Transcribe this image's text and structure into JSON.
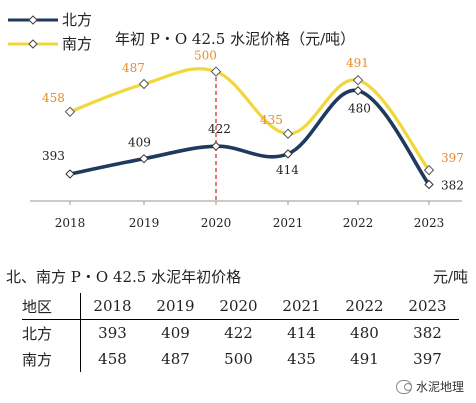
{
  "chart_data": {
    "type": "line",
    "title": "年初 P・O 42.5 水泥价格（元/吨）",
    "categories": [
      "2018",
      "2019",
      "2020",
      "2021",
      "2022",
      "2023"
    ],
    "series": [
      {
        "name": "北方",
        "values": [
          393,
          409,
          422,
          414,
          480,
          382
        ],
        "color": "#1f3a5f",
        "label_color": "#222222"
      },
      {
        "name": "南方",
        "values": [
          458,
          487,
          500,
          435,
          491,
          397
        ],
        "color": "#f2d73a",
        "label_color": "#e98a2a"
      }
    ],
    "ylim": [
      370,
      510
    ],
    "reference_line": {
      "at": "2020",
      "color": "#d62020",
      "style": "dashed"
    },
    "legend": "top-left",
    "grid": false
  },
  "table": {
    "title": "北、南方 P・O 42.5 水泥年初价格",
    "unit": "元/吨",
    "header_label": "地区",
    "years": [
      "2018",
      "2019",
      "2020",
      "2021",
      "2022",
      "2023"
    ],
    "rows": [
      {
        "region": "北方",
        "values": [
          "393",
          "409",
          "422",
          "414",
          "480",
          "382"
        ]
      },
      {
        "region": "南方",
        "values": [
          "458",
          "487",
          "500",
          "435",
          "491",
          "397"
        ]
      }
    ]
  },
  "watermark": {
    "text": "水泥地理",
    "icon": "wechat-icon"
  }
}
